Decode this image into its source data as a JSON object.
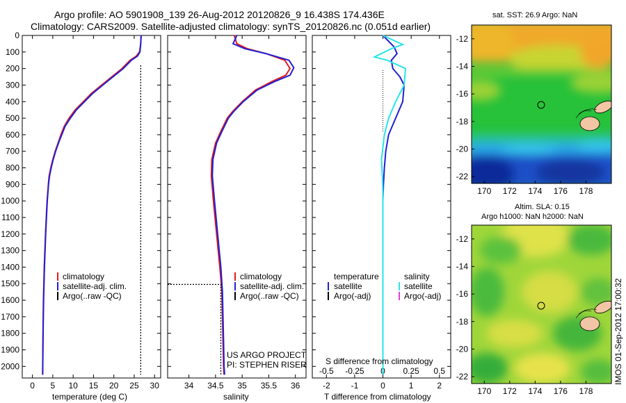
{
  "header": {
    "line1": "Argo profile: AO 5901908_139 26-Aug-2012 20120826_9 16.438S 174.436E",
    "line2": "Climatology: CARS2009. Satellite-adjusted climatology: synTS_20120826.nc (0.051d earlier)"
  },
  "colors": {
    "climatology": "#e41a1c",
    "satellite": "#1f1fd6",
    "argo": "#000000",
    "salinity_satellite": "#27e5ea",
    "salinity_argo": "#e040e0"
  },
  "project": {
    "line1": "US ARGO PROJECT",
    "line2": "PI: STEPHEN RISER"
  },
  "stamp": "IMOS 01-Sep-2012 17:00:32",
  "chart_data": [
    {
      "type": "line",
      "name": "temperature-profile",
      "xlabel": "temperature (deg C)",
      "ylabel": "",
      "xlim": [
        -2.5,
        31.5
      ],
      "ylim": [
        2070,
        0
      ],
      "xticks": [
        0,
        5,
        10,
        15,
        20,
        25,
        30
      ],
      "yticks": [
        0,
        100,
        200,
        300,
        400,
        500,
        600,
        700,
        800,
        900,
        1000,
        1100,
        1200,
        1300,
        1400,
        1500,
        1600,
        1700,
        1800,
        1900,
        2000
      ],
      "legend": [
        "climatology",
        "satellite-adj. clim.",
        "Argo(..raw -QC)"
      ],
      "series": [
        {
          "name": "climatology",
          "x": [
            26.7,
            26.6,
            26.3,
            25.5,
            24,
            22,
            19.5,
            17,
            14.5,
            12.5,
            10.5,
            9,
            7.8,
            7,
            6.3,
            5.6,
            5,
            4.5,
            4.1,
            3.9,
            3.6,
            3.4,
            3.2,
            3.05,
            2.9,
            2.8,
            2.7,
            2.65,
            2.6,
            2.55,
            2.5
          ],
          "y": [
            0,
            50,
            100,
            125,
            150,
            200,
            250,
            300,
            350,
            400,
            450,
            500,
            550,
            600,
            650,
            700,
            750,
            800,
            850,
            900,
            1000,
            1100,
            1200,
            1300,
            1400,
            1500,
            1600,
            1700,
            1800,
            1900,
            2050
          ]
        },
        {
          "name": "satellite-adj. clim.",
          "x": [
            26.7,
            26.6,
            26.4,
            25.8,
            24.3,
            22.3,
            19.8,
            17.3,
            14.8,
            12.8,
            10.8,
            9.3,
            8,
            7.2,
            6.4,
            5.7,
            5.1,
            4.6,
            4.2,
            3.95,
            3.65,
            3.45,
            3.25,
            3.1,
            2.95,
            2.85,
            2.75,
            2.68,
            2.62,
            2.57,
            2.52
          ],
          "y": [
            0,
            50,
            100,
            125,
            150,
            200,
            250,
            300,
            350,
            400,
            450,
            500,
            550,
            600,
            650,
            700,
            750,
            800,
            850,
            900,
            1000,
            1100,
            1200,
            1300,
            1400,
            1500,
            1600,
            1700,
            1800,
            1900,
            2050
          ]
        },
        {
          "name": "Argo(..raw -QC)",
          "x": [
            26.6,
            26.6,
            26.6,
            26.6,
            26.6,
            26.6
          ],
          "y": [
            180,
            400,
            700,
            830,
            900,
            2050
          ]
        }
      ]
    },
    {
      "type": "line",
      "name": "salinity-profile",
      "xlabel": "salinity",
      "xlim": [
        33.6,
        36.2
      ],
      "ylim": [
        2070,
        0
      ],
      "xticks": [
        34,
        34.5,
        35,
        35.5,
        36
      ],
      "legend": [
        "climatology",
        "satellite-adj. clim.",
        "Argo(..raw -QC)"
      ],
      "series": [
        {
          "name": "climatology",
          "x": [
            34.85,
            34.9,
            35.1,
            35.45,
            35.8,
            35.9,
            35.82,
            35.55,
            35.25,
            35.0,
            34.82,
            34.72,
            34.6,
            34.5,
            34.43,
            34.42,
            34.46,
            34.52,
            34.58,
            34.62,
            34.63,
            34.64,
            34.65,
            34.66
          ],
          "y": [
            0,
            50,
            80,
            110,
            150,
            200,
            240,
            280,
            330,
            400,
            460,
            500,
            580,
            650,
            750,
            850,
            1000,
            1200,
            1400,
            1550,
            1700,
            1850,
            2000,
            2050
          ]
        },
        {
          "name": "satellite-adj. clim.",
          "x": [
            34.9,
            34.83,
            35.05,
            35.45,
            35.88,
            35.97,
            35.9,
            35.6,
            35.28,
            35.02,
            34.84,
            34.74,
            34.62,
            34.52,
            34.45,
            34.44,
            34.48,
            34.54,
            34.6,
            34.63,
            34.64,
            34.65,
            34.66,
            34.67
          ],
          "y": [
            0,
            50,
            80,
            110,
            150,
            195,
            240,
            280,
            330,
            400,
            460,
            500,
            580,
            650,
            750,
            850,
            1000,
            1200,
            1400,
            1550,
            1700,
            1850,
            2000,
            2050
          ]
        },
        {
          "name": "Argo(..raw -QC)",
          "x": [
            33.6,
            34.6,
            34.6,
            34.6
          ],
          "y": [
            1505,
            1505,
            1800,
            2050
          ]
        }
      ]
    },
    {
      "type": "line",
      "name": "difference-profile",
      "xlabel": "T difference from climatology",
      "xlabel_top": "S difference from climatology",
      "xlim": [
        -2.5,
        2.4
      ],
      "ylim": [
        2070,
        0
      ],
      "xticks": [
        -2,
        -1,
        0,
        1,
        2
      ],
      "xticks_top": [
        -0.5,
        -0.25,
        0,
        0.25,
        0.5
      ],
      "legend_temperature": [
        "temperature",
        "satellite",
        "Argo(-adj)"
      ],
      "legend_salinity": [
        "salinity",
        "satellite",
        "Argo(-adj)"
      ],
      "series": [
        {
          "name": "temperature satellite",
          "x": [
            0,
            0.4,
            0.5,
            0.3,
            0.35,
            0.6,
            0.75,
            0.7,
            0.45,
            0.2,
            0.1,
            0.05,
            0.02,
            0,
            0
          ],
          "y": [
            0,
            70,
            110,
            150,
            200,
            250,
            300,
            400,
            500,
            600,
            700,
            800,
            900,
            1000,
            2050
          ]
        },
        {
          "name": "salinity satellite",
          "x": [
            0,
            0.7,
            0.3,
            -0.3,
            0.15,
            0.8,
            0.75,
            0.45,
            0.2,
            0.05,
            -0.05,
            -0.02,
            0,
            0,
            0
          ],
          "y": [
            0,
            55,
            80,
            130,
            150,
            200,
            300,
            400,
            500,
            600,
            750,
            850,
            950,
            1100,
            2050
          ]
        }
      ]
    }
  ],
  "maps": {
    "sst": {
      "title": "sat. SST: 26.9 Argo: NaN",
      "xticks": [
        "170",
        "172",
        "174",
        "176",
        "178"
      ],
      "yticks": [
        "-12",
        "-14",
        "-16",
        "-18",
        "-20",
        "-22"
      ]
    },
    "sla": {
      "title_line1": "Altim. SLA: 0.15",
      "title_line2": "Argo h1000: NaN h2000: NaN",
      "xticks": [
        "170",
        "172",
        "174",
        "176",
        "178"
      ],
      "yticks": [
        "-12",
        "-14",
        "-16",
        "-18",
        "-20",
        "-22"
      ]
    }
  }
}
